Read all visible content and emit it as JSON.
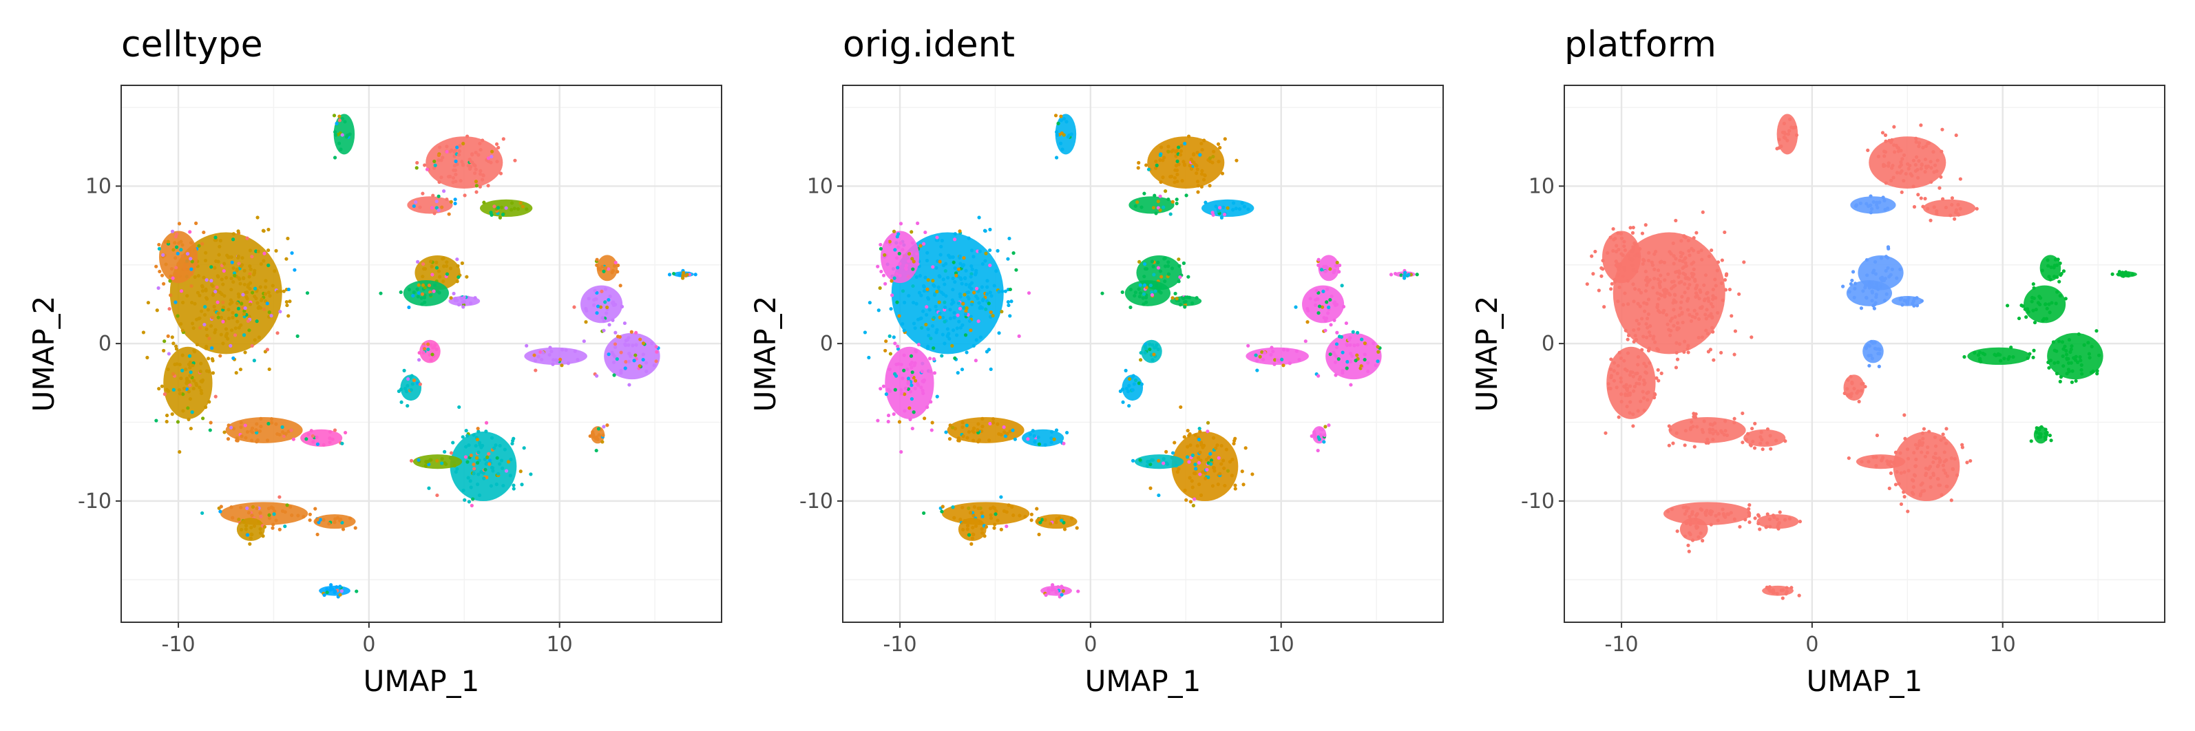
{
  "chart_data": [
    {
      "type": "scatter",
      "title": "celltype",
      "xlabel": "UMAP_1",
      "ylabel": "UMAP_2",
      "xlim": [
        -13,
        18.5
      ],
      "ylim": [
        -17.7,
        16.4
      ],
      "xticks": [
        -10,
        0,
        10
      ],
      "yticks": [
        -10,
        0,
        10
      ],
      "xtick_labels": [
        "-10",
        "0",
        "10"
      ],
      "ytick_labels": [
        "-10",
        "0",
        "10"
      ],
      "grid": true,
      "legend": "none"
    },
    {
      "type": "scatter",
      "title": "orig.ident",
      "xlabel": "UMAP_1",
      "ylabel": "UMAP_2",
      "xlim": [
        -13,
        18.5
      ],
      "ylim": [
        -17.7,
        16.4
      ],
      "xticks": [
        -10,
        0,
        10
      ],
      "yticks": [
        -10,
        0,
        10
      ],
      "xtick_labels": [
        "-10",
        "0",
        "10"
      ],
      "ytick_labels": [
        "-10",
        "0",
        "10"
      ],
      "grid": true,
      "legend": "none"
    },
    {
      "type": "scatter",
      "title": "platform",
      "xlabel": "UMAP_1",
      "ylabel": "UMAP_2",
      "xlim": [
        -13,
        18.5
      ],
      "ylim": [
        -17.7,
        16.4
      ],
      "xticks": [
        -10,
        0,
        10
      ],
      "yticks": [
        -10,
        0,
        10
      ],
      "xtick_labels": [
        "-10",
        "0",
        "10"
      ],
      "ytick_labels": [
        "-10",
        "0",
        "10"
      ],
      "grid": true,
      "legend": "none"
    }
  ],
  "clusters": [
    {
      "cx": -7.5,
      "cy": 3.2,
      "rx": 3.2,
      "ry": 4.2
    },
    {
      "cx": -10.0,
      "cy": 5.5,
      "rx": 1.1,
      "ry": 1.8
    },
    {
      "cx": -9.5,
      "cy": -2.5,
      "rx": 1.4,
      "ry": 2.5
    },
    {
      "cx": -5.5,
      "cy": -5.5,
      "rx": 2.2,
      "ry": 0.9
    },
    {
      "cx": -2.5,
      "cy": -6.0,
      "rx": 1.2,
      "ry": 0.6
    },
    {
      "cx": -5.5,
      "cy": -10.8,
      "rx": 2.5,
      "ry": 0.8
    },
    {
      "cx": -1.8,
      "cy": -11.3,
      "rx": 1.2,
      "ry": 0.5
    },
    {
      "cx": -6.2,
      "cy": -11.8,
      "rx": 0.8,
      "ry": 0.8
    },
    {
      "cx": -1.8,
      "cy": -15.7,
      "rx": 0.9,
      "ry": 0.35
    },
    {
      "cx": -1.3,
      "cy": 13.3,
      "rx": 0.6,
      "ry": 1.4
    },
    {
      "cx": 5.0,
      "cy": 11.5,
      "rx": 2.2,
      "ry": 1.8
    },
    {
      "cx": 7.2,
      "cy": 8.6,
      "rx": 1.5,
      "ry": 0.6
    },
    {
      "cx": 3.2,
      "cy": 8.8,
      "rx": 1.3,
      "ry": 0.6
    },
    {
      "cx": 3.6,
      "cy": 4.5,
      "rx": 1.3,
      "ry": 1.2
    },
    {
      "cx": 3.0,
      "cy": 3.2,
      "rx": 1.3,
      "ry": 0.9
    },
    {
      "cx": 5.0,
      "cy": 2.7,
      "rx": 0.9,
      "ry": 0.35
    },
    {
      "cx": 3.2,
      "cy": -0.5,
      "rx": 0.6,
      "ry": 0.8
    },
    {
      "cx": 2.2,
      "cy": -2.8,
      "rx": 0.6,
      "ry": 0.9
    },
    {
      "cx": 12.2,
      "cy": 2.5,
      "rx": 1.2,
      "ry": 1.3
    },
    {
      "cx": 13.8,
      "cy": -0.8,
      "rx": 1.6,
      "ry": 1.6
    },
    {
      "cx": 9.8,
      "cy": -0.8,
      "rx": 1.8,
      "ry": 0.6
    },
    {
      "cx": 12.5,
      "cy": 4.8,
      "rx": 0.6,
      "ry": 0.9
    },
    {
      "cx": 6.0,
      "cy": -7.8,
      "rx": 1.9,
      "ry": 2.4
    },
    {
      "cx": 3.6,
      "cy": -7.5,
      "rx": 1.4,
      "ry": 0.5
    },
    {
      "cx": 16.5,
      "cy": 4.4,
      "rx": 0.6,
      "ry": 0.2
    },
    {
      "cx": 12.0,
      "cy": -5.8,
      "rx": 0.4,
      "ry": 0.6
    }
  ],
  "palettes": {
    "celltype": [
      "#f8766d",
      "#cd9600",
      "#7cae00",
      "#00be67",
      "#00bfc4",
      "#00a9ff",
      "#c77cff",
      "#ff61cc",
      "#e88526"
    ],
    "orig.ident": [
      "#00b4f0",
      "#d89000",
      "#f564e3",
      "#00bc56",
      "#b79f00",
      "#00bfc4"
    ],
    "platform": [
      "#f8766d",
      "#619cff",
      "#00ba38"
    ]
  },
  "cluster_colors": {
    "celltype": [
      1,
      8,
      1,
      8,
      7,
      8,
      8,
      1,
      5,
      3,
      0,
      2,
      0,
      1,
      3,
      6,
      7,
      4,
      6,
      6,
      6,
      8,
      4,
      2,
      5,
      8
    ],
    "orig.ident": [
      0,
      2,
      2,
      1,
      0,
      1,
      1,
      1,
      2,
      0,
      1,
      0,
      3,
      3,
      3,
      3,
      5,
      0,
      2,
      2,
      2,
      2,
      1,
      5,
      2,
      2
    ],
    "platform": [
      0,
      0,
      0,
      0,
      0,
      0,
      0,
      0,
      0,
      0,
      0,
      0,
      1,
      1,
      1,
      1,
      1,
      0,
      2,
      2,
      2,
      2,
      0,
      0,
      2,
      2
    ]
  }
}
